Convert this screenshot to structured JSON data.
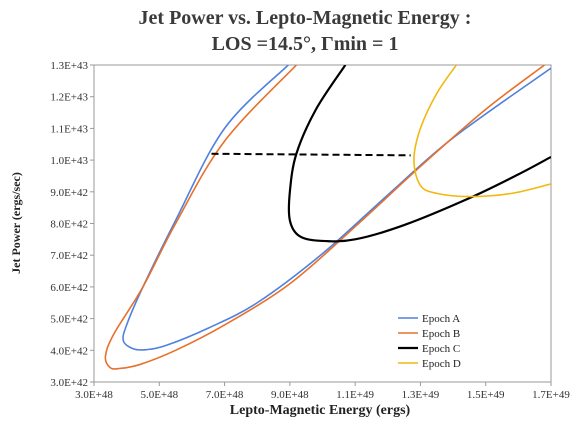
{
  "chart_data": {
    "type": "line",
    "title_line1": "Jet Power vs. Lepto-Magnetic Energy :",
    "title_line2": "LOS =14.5°, Γmin  = 1",
    "xlabel": "Lepto-Magnetic Energy (ergs)",
    "ylabel": "Jet Power (ergs/sec)",
    "xlim": [
      3e+48,
      1.7e+49
    ],
    "ylim": [
      3e+42,
      1.3e+43
    ],
    "x_ticks": [
      3e+48,
      5e+48,
      7e+48,
      9e+48,
      1.1e+49,
      1.3e+49,
      1.5e+49,
      1.7e+49
    ],
    "x_tick_labels": [
      "3.0E+48",
      "5.0E+48",
      "7.0E+48",
      "9.0E+48",
      "1.1E+49",
      "1.3E+49",
      "1.5E+49",
      "1.7E+49"
    ],
    "y_ticks": [
      3e+42,
      4e+42,
      5e+42,
      6e+42,
      7e+42,
      8e+42,
      9e+42,
      1e+43,
      1.1e+43,
      1.2e+43,
      1.3e+43
    ],
    "y_tick_labels": [
      "3.0E+42",
      "4.0E+42",
      "5.0E+42",
      "6.0E+42",
      "7.0E+42",
      "8.0E+42",
      "9.0E+42",
      "1.0E+43",
      "1.1E+43",
      "1.2E+43",
      "1.3E+43"
    ],
    "grid": false,
    "legend_position": "bottom-right",
    "series": [
      {
        "name": "Epoch A",
        "color": "#4f81e0",
        "points": [
          [
            8.95e+48,
            1.3e+43
          ],
          [
            7e+48,
            1.1e+43
          ],
          [
            5.5e+48,
            8.1e+42
          ],
          [
            4.5e+48,
            6e+42
          ],
          [
            4e+48,
            4.8e+42
          ],
          [
            3.9e+48,
            4.3e+42
          ],
          [
            4.2e+48,
            4.05e+42
          ],
          [
            4.6e+48,
            4.02e+42
          ],
          [
            5.2e+48,
            4.15e+42
          ],
          [
            6.5e+48,
            4.7e+42
          ],
          [
            8e+48,
            5.5e+42
          ],
          [
            1e+49,
            7.05e+42
          ],
          [
            1.2e+49,
            8.9e+42
          ],
          [
            1.4e+49,
            1.07e+43
          ],
          [
            1.7e+49,
            1.29e+43
          ]
        ]
      },
      {
        "name": "Epoch B",
        "color": "#e8702a",
        "points": [
          [
            9.2e+48,
            1.3e+43
          ],
          [
            7e+48,
            1.06e+43
          ],
          [
            5.5e+48,
            8e+42
          ],
          [
            4.5e+48,
            6e+42
          ],
          [
            3.6e+48,
            4.5e+42
          ],
          [
            3.35e+48,
            3.8e+42
          ],
          [
            3.5e+48,
            3.45e+42
          ],
          [
            3.8e+48,
            3.43e+42
          ],
          [
            4.4e+48,
            3.55e+42
          ],
          [
            5.5e+48,
            4e+42
          ],
          [
            7e+48,
            4.8e+42
          ],
          [
            9e+48,
            6.1e+42
          ],
          [
            1.1e+49,
            7.9e+42
          ],
          [
            1.3e+49,
            9.8e+42
          ],
          [
            1.5e+49,
            1.16e+43
          ],
          [
            1.68e+49,
            1.3e+43
          ]
        ]
      },
      {
        "name": "Epoch C",
        "color": "#000000",
        "points": [
          [
            1.07e+49,
            1.3e+43
          ],
          [
            9.8e+48,
            1.16e+43
          ],
          [
            9.2e+48,
            1.02e+43
          ],
          [
            9e+48,
            9e+42
          ],
          [
            9e+48,
            8.1e+42
          ],
          [
            9.3e+48,
            7.6e+42
          ],
          [
            1e+49,
            7.45e+42
          ],
          [
            1.1e+49,
            7.5e+42
          ],
          [
            1.25e+49,
            7.95e+42
          ],
          [
            1.45e+49,
            8.8e+42
          ],
          [
            1.6e+49,
            9.55e+42
          ],
          [
            1.7e+49,
            1.01e+43
          ]
        ]
      },
      {
        "name": "Epoch D",
        "color": "#f2b810",
        "points": [
          [
            1.41e+49,
            1.3e+43
          ],
          [
            1.35e+49,
            1.21e+43
          ],
          [
            1.3e+49,
            1.1e+43
          ],
          [
            1.28e+49,
            1e+43
          ],
          [
            1.3e+49,
            9.2e+42
          ],
          [
            1.35e+49,
            8.95e+42
          ],
          [
            1.45e+49,
            8.85e+42
          ],
          [
            1.58e+49,
            8.95e+42
          ],
          [
            1.7e+49,
            9.25e+42
          ]
        ]
      }
    ],
    "annotations": [
      {
        "type": "dashed-line",
        "color": "#000000",
        "points": [
          [
            6.6e+48,
            1.02e+43
          ],
          [
            1.27e+49,
            1.015e+43
          ]
        ]
      }
    ]
  }
}
